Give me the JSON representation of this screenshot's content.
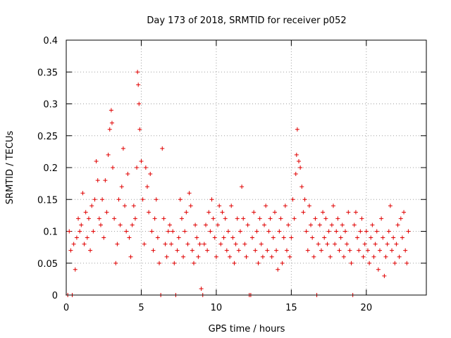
{
  "chart_data": {
    "type": "scatter",
    "title": "Day 173 of 2018, SRMTID for receiver p052",
    "xlabel": "GPS time / hours",
    "ylabel": "SRMTID / TECUs",
    "xlim": [
      0,
      24
    ],
    "ylim": [
      0,
      0.4
    ],
    "xticks": [
      0,
      5,
      10,
      15,
      20
    ],
    "xtick_labels": [
      "0",
      "5",
      "10",
      "15",
      "20"
    ],
    "yticks": [
      0,
      0.05,
      0.1,
      0.15,
      0.2,
      0.25,
      0.3,
      0.35,
      0.4
    ],
    "ytick_labels": [
      "0",
      "0.05",
      "0.1",
      "0.15",
      "0.2",
      "0.25",
      "0.3",
      "0.35",
      "0.4"
    ],
    "grid": true,
    "marker": "plus",
    "color": "#e00000",
    "series": [
      {
        "name": "SRMTID",
        "points": [
          [
            0.1,
            0
          ],
          [
            0.2,
            0.1
          ],
          [
            0.3,
            0.07
          ],
          [
            0.4,
            0
          ],
          [
            0.5,
            0.08
          ],
          [
            0.6,
            0.04
          ],
          [
            0.7,
            0.09
          ],
          [
            0.8,
            0.12
          ],
          [
            0.9,
            0.1
          ],
          [
            1.0,
            0.11
          ],
          [
            1.1,
            0.16
          ],
          [
            1.2,
            0.08
          ],
          [
            1.3,
            0.13
          ],
          [
            1.4,
            0.09
          ],
          [
            1.5,
            0.12
          ],
          [
            1.6,
            0.07
          ],
          [
            1.7,
            0.14
          ],
          [
            1.8,
            0.1
          ],
          [
            1.9,
            0.15
          ],
          [
            2.0,
            0.21
          ],
          [
            2.1,
            0.18
          ],
          [
            2.2,
            0.12
          ],
          [
            2.3,
            0.11
          ],
          [
            2.4,
            0.15
          ],
          [
            2.5,
            0.09
          ],
          [
            2.6,
            0.18
          ],
          [
            2.7,
            0.13
          ],
          [
            2.8,
            0.22
          ],
          [
            2.9,
            0.26
          ],
          [
            3.0,
            0.29
          ],
          [
            3.05,
            0.27
          ],
          [
            3.1,
            0.2
          ],
          [
            3.2,
            0.12
          ],
          [
            3.3,
            0.05
          ],
          [
            3.4,
            0.08
          ],
          [
            3.5,
            0.15
          ],
          [
            3.6,
            0.11
          ],
          [
            3.7,
            0.17
          ],
          [
            3.8,
            0.23
          ],
          [
            3.9,
            0.14
          ],
          [
            4.0,
            0.1
          ],
          [
            4.1,
            0.19
          ],
          [
            4.2,
            0.09
          ],
          [
            4.3,
            0.06
          ],
          [
            4.4,
            0.11
          ],
          [
            4.5,
            0.14
          ],
          [
            4.6,
            0.12
          ],
          [
            4.7,
            0.2
          ],
          [
            4.75,
            0.35
          ],
          [
            4.8,
            0.33
          ],
          [
            4.85,
            0.3
          ],
          [
            4.9,
            0.26
          ],
          [
            5.0,
            0.21
          ],
          [
            5.1,
            0.15
          ],
          [
            5.2,
            0.08
          ],
          [
            5.3,
            0.2
          ],
          [
            5.4,
            0.17
          ],
          [
            5.5,
            0.13
          ],
          [
            5.6,
            0.19
          ],
          [
            5.7,
            0.1
          ],
          [
            5.8,
            0.07
          ],
          [
            5.9,
            0.12
          ],
          [
            6.0,
            0.15
          ],
          [
            6.1,
            0.09
          ],
          [
            6.2,
            0.05
          ],
          [
            6.3,
            0
          ],
          [
            6.4,
            0.23
          ],
          [
            6.5,
            0.12
          ],
          [
            6.6,
            0.08
          ],
          [
            6.7,
            0.06
          ],
          [
            6.8,
            0.1
          ],
          [
            6.9,
            0.11
          ],
          [
            7.0,
            0.08
          ],
          [
            7.1,
            0.1
          ],
          [
            7.2,
            0.05
          ],
          [
            7.3,
            0
          ],
          [
            7.4,
            0.07
          ],
          [
            7.5,
            0.09
          ],
          [
            7.6,
            0.15
          ],
          [
            7.7,
            0.12
          ],
          [
            7.8,
            0.06
          ],
          [
            7.9,
            0.1
          ],
          [
            8.0,
            0.13
          ],
          [
            8.1,
            0.08
          ],
          [
            8.2,
            0.16
          ],
          [
            8.3,
            0.14
          ],
          [
            8.4,
            0.07
          ],
          [
            8.5,
            0.05
          ],
          [
            8.6,
            0.11
          ],
          [
            8.7,
            0.09
          ],
          [
            8.8,
            0.06
          ],
          [
            8.9,
            0.08
          ],
          [
            9.0,
            0.01
          ],
          [
            9.1,
            0
          ],
          [
            9.2,
            0.08
          ],
          [
            9.3,
            0.11
          ],
          [
            9.4,
            0.07
          ],
          [
            9.5,
            0.13
          ],
          [
            9.6,
            0.1
          ],
          [
            9.7,
            0.15
          ],
          [
            9.8,
            0.12
          ],
          [
            9.9,
            0.09
          ],
          [
            10.0,
            0.06
          ],
          [
            10.1,
            0.11
          ],
          [
            10.2,
            0.14
          ],
          [
            10.3,
            0.08
          ],
          [
            10.4,
            0.13
          ],
          [
            10.5,
            0.09
          ],
          [
            10.6,
            0.12
          ],
          [
            10.7,
            0.07
          ],
          [
            10.8,
            0.1
          ],
          [
            10.9,
            0.06
          ],
          [
            11.0,
            0.14
          ],
          [
            11.1,
            0.09
          ],
          [
            11.2,
            0.05
          ],
          [
            11.3,
            0.08
          ],
          [
            11.4,
            0.12
          ],
          [
            11.5,
            0.07
          ],
          [
            11.6,
            0.1
          ],
          [
            11.7,
            0.17
          ],
          [
            11.8,
            0.12
          ],
          [
            11.9,
            0.08
          ],
          [
            12.0,
            0.06
          ],
          [
            12.1,
            0.11
          ],
          [
            12.2,
            0
          ],
          [
            12.3,
            0
          ],
          [
            12.4,
            0.09
          ],
          [
            12.5,
            0.13
          ],
          [
            12.6,
            0.07
          ],
          [
            12.7,
            0.1
          ],
          [
            12.8,
            0.05
          ],
          [
            12.9,
            0.12
          ],
          [
            13.0,
            0.08
          ],
          [
            13.1,
            0.06
          ],
          [
            13.2,
            0.11
          ],
          [
            13.3,
            0.14
          ],
          [
            13.4,
            0.07
          ],
          [
            13.5,
            0.1
          ],
          [
            13.6,
            0.12
          ],
          [
            13.7,
            0.06
          ],
          [
            13.8,
            0.09
          ],
          [
            13.9,
            0.13
          ],
          [
            14.0,
            0.07
          ],
          [
            14.1,
            0.04
          ],
          [
            14.2,
            0.1
          ],
          [
            14.3,
            0.12
          ],
          [
            14.4,
            0.05
          ],
          [
            14.5,
            0.09
          ],
          [
            14.6,
            0.14
          ],
          [
            14.7,
            0.07
          ],
          [
            14.8,
            0.11
          ],
          [
            14.9,
            0.06
          ],
          [
            15.0,
            0.09
          ],
          [
            15.1,
            0.15
          ],
          [
            15.2,
            0.12
          ],
          [
            15.3,
            0.19
          ],
          [
            15.35,
            0.22
          ],
          [
            15.4,
            0.26
          ],
          [
            15.5,
            0.21
          ],
          [
            15.6,
            0.2
          ],
          [
            15.7,
            0.17
          ],
          [
            15.8,
            0.13
          ],
          [
            15.9,
            0.15
          ],
          [
            16.0,
            0.1
          ],
          [
            16.1,
            0.07
          ],
          [
            16.2,
            0.14
          ],
          [
            16.3,
            0.11
          ],
          [
            16.4,
            0.09
          ],
          [
            16.5,
            0.06
          ],
          [
            16.6,
            0.12
          ],
          [
            16.7,
            0
          ],
          [
            16.8,
            0.08
          ],
          [
            16.9,
            0.11
          ],
          [
            17.0,
            0.07
          ],
          [
            17.1,
            0.13
          ],
          [
            17.2,
            0.09
          ],
          [
            17.3,
            0.12
          ],
          [
            17.4,
            0.08
          ],
          [
            17.5,
            0.1
          ],
          [
            17.6,
            0.06
          ],
          [
            17.7,
            0.11
          ],
          [
            17.8,
            0.14
          ],
          [
            17.9,
            0.08
          ],
          [
            18.0,
            0.1
          ],
          [
            18.1,
            0.12
          ],
          [
            18.2,
            0.07
          ],
          [
            18.3,
            0.09
          ],
          [
            18.4,
            0.11
          ],
          [
            18.5,
            0.06
          ],
          [
            18.6,
            0.1
          ],
          [
            18.7,
            0.08
          ],
          [
            18.8,
            0.13
          ],
          [
            18.9,
            0.07
          ],
          [
            19.0,
            0.05
          ],
          [
            19.1,
            0
          ],
          [
            19.2,
            0.11
          ],
          [
            19.3,
            0.13
          ],
          [
            19.4,
            0.09
          ],
          [
            19.5,
            0.07
          ],
          [
            19.6,
            0.1
          ],
          [
            19.7,
            0.12
          ],
          [
            19.8,
            0.06
          ],
          [
            19.9,
            0.08
          ],
          [
            20.0,
            0.1
          ],
          [
            20.1,
            0.07
          ],
          [
            20.2,
            0.05
          ],
          [
            20.3,
            0.09
          ],
          [
            20.4,
            0.11
          ],
          [
            20.5,
            0.06
          ],
          [
            20.6,
            0.08
          ],
          [
            20.7,
            0.1
          ],
          [
            20.8,
            0.04
          ],
          [
            20.9,
            0.07
          ],
          [
            21.0,
            0.12
          ],
          [
            21.1,
            0.09
          ],
          [
            21.2,
            0.03
          ],
          [
            21.3,
            0.06
          ],
          [
            21.4,
            0.08
          ],
          [
            21.5,
            0.1
          ],
          [
            21.6,
            0.14
          ],
          [
            21.7,
            0.07
          ],
          [
            21.8,
            0.09
          ],
          [
            21.9,
            0.05
          ],
          [
            22.0,
            0.08
          ],
          [
            22.1,
            0.11
          ],
          [
            22.2,
            0.06
          ],
          [
            22.3,
            0.12
          ],
          [
            22.4,
            0.09
          ],
          [
            22.5,
            0.13
          ],
          [
            22.6,
            0.07
          ],
          [
            22.7,
            0.05
          ],
          [
            22.8,
            0.1
          ]
        ]
      }
    ]
  }
}
